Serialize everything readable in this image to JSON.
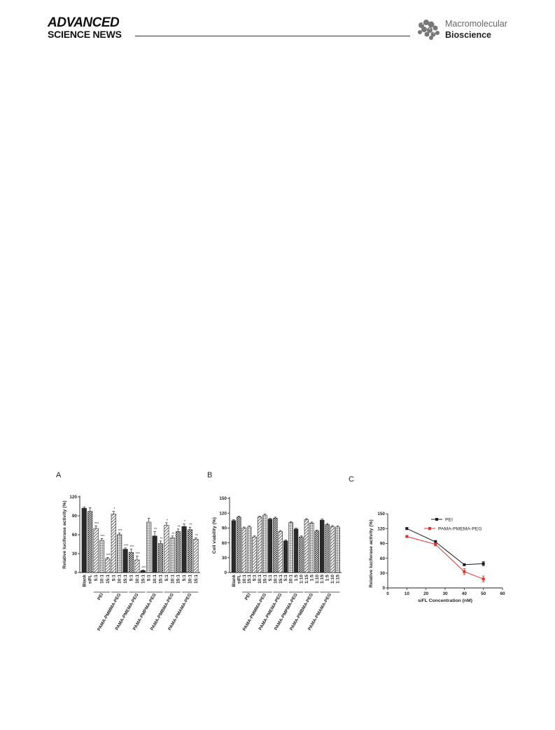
{
  "header": {
    "logo_line1": "ADVANCED",
    "logo_line2": "SCIENCE NEWS",
    "journal_line1": "Macromolecular",
    "journal_line2": "Bioscience"
  },
  "chart_data": [
    {
      "panel": "A",
      "type": "bar",
      "ylabel": "Relative luciferase activity (%)",
      "ylim": [
        0,
        120
      ],
      "yticks": [
        0,
        30,
        60,
        90,
        120
      ],
      "categories": [
        "Blank",
        "siFL",
        "5:1",
        "10:1",
        "15:1",
        "5:1",
        "10:1",
        "15:1",
        "5:1",
        "10:1",
        "15:1",
        "5:1",
        "10:1",
        "15:1",
        "5:1",
        "10:1",
        "15:1",
        "5:1",
        "10:1",
        "15:1"
      ],
      "values": [
        102,
        97,
        70,
        51,
        22,
        93,
        60,
        37,
        32,
        20,
        3,
        80,
        58,
        46,
        75,
        55,
        65,
        73,
        68,
        53
      ],
      "errors": [
        2,
        6,
        4,
        3,
        2,
        4,
        3,
        2,
        5,
        6,
        1,
        6,
        7,
        4,
        4,
        3,
        4,
        4,
        4,
        2
      ],
      "significance": [
        "",
        "",
        "***",
        "***",
        "***",
        "*",
        "***",
        "***",
        "***",
        "***",
        "***",
        "",
        "**",
        "**",
        "*",
        "**",
        "**",
        "*",
        "**",
        "**"
      ],
      "patterns": [
        "solid",
        "check",
        "hatch",
        "dots",
        "hatch",
        "hatch",
        "dots",
        "solid",
        "check",
        "hatch",
        "solid",
        "dots",
        "solid",
        "check",
        "hatch",
        "dots",
        "check",
        "solid",
        "check",
        "hatch"
      ],
      "groups": [
        {
          "label": "PEI",
          "start": 2,
          "end": 4
        },
        {
          "label": "PAMA-PMMMA-PEG",
          "start": 5,
          "end": 7
        },
        {
          "label": "PAMA-PMEMA-PEG",
          "start": 8,
          "end": 10
        },
        {
          "label": "PAMA-PMPMA-PEG",
          "start": 11,
          "end": 13
        },
        {
          "label": "PAMA-PMBMA-PEG",
          "start": 14,
          "end": 16
        },
        {
          "label": "PAMA-PMAMA-PEG",
          "start": 17,
          "end": 19
        }
      ]
    },
    {
      "panel": "B",
      "type": "bar",
      "ylabel": "Cell viability (%)",
      "ylim": [
        0,
        150
      ],
      "yticks": [
        0,
        30,
        60,
        90,
        120,
        150
      ],
      "categories": [
        "Blank",
        "siFL",
        "10:1",
        "15:1",
        "5:1",
        "10:1",
        "15:1",
        "5:1",
        "10:1",
        "15:1",
        "5:1",
        "10:1",
        "1:5",
        "1:10",
        "1:15",
        "1:5",
        "1:10",
        "1:15",
        "1:5",
        "1:10",
        "1:15"
      ],
      "values": [
        105,
        112,
        90,
        92,
        72,
        112,
        116,
        108,
        110,
        83,
        64,
        101,
        88,
        72,
        107,
        100,
        84,
        106,
        97,
        93,
        92
      ],
      "errors": [
        2,
        2,
        2,
        2,
        2,
        2,
        2,
        2,
        2,
        2,
        2,
        2,
        2,
        2,
        2,
        2,
        2,
        2,
        2,
        2,
        2
      ],
      "patterns": [
        "solid",
        "check",
        "hatch",
        "dots",
        "hatch",
        "hatch",
        "dots",
        "solid",
        "check",
        "hatch",
        "solid",
        "dots",
        "solid",
        "check",
        "hatch",
        "dots",
        "check",
        "solid",
        "check",
        "hatch",
        "dots"
      ],
      "groups": [
        {
          "label": "PEI",
          "start": 2,
          "end": 4
        },
        {
          "label": "PAMA-PMMMA-PEG",
          "start": 5,
          "end": 7
        },
        {
          "label": "PAMA-PMEMA-PEG",
          "start": 8,
          "end": 10
        },
        {
          "label": "PAMA-PMPMA-PEG",
          "start": 11,
          "end": 13
        },
        {
          "label": "PAMA-PMBMA-PEG",
          "start": 14,
          "end": 16
        },
        {
          "label": "PAMA-PMAMA-PEG",
          "start": 17,
          "end": 20
        }
      ]
    },
    {
      "panel": "C",
      "type": "line",
      "xlabel": "siFL Concentration (nM)",
      "ylabel": "Relative luciferase activity (%)",
      "xlim": [
        0,
        60
      ],
      "ylim": [
        0,
        150
      ],
      "xticks": [
        0,
        10,
        20,
        30,
        40,
        50,
        60
      ],
      "yticks": [
        0,
        30,
        60,
        90,
        120,
        150
      ],
      "x": [
        10,
        25,
        40,
        50
      ],
      "legend_position": "top",
      "series": [
        {
          "name": "PEI",
          "color": "#1a1a1a",
          "values": [
            120,
            93,
            47,
            49
          ],
          "errors": [
            2,
            3,
            1,
            4
          ]
        },
        {
          "name": "PAMA-PMEMA-PEG",
          "color": "#e03030",
          "values": [
            104,
            88,
            33,
            18
          ],
          "errors": [
            2,
            3,
            6,
            6
          ]
        }
      ]
    }
  ]
}
